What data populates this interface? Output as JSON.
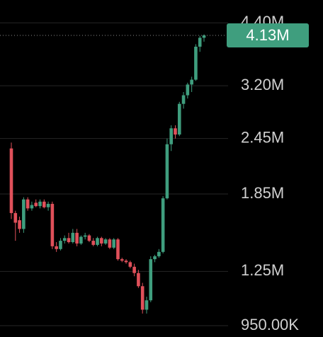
{
  "chart_data": {
    "type": "candlestick",
    "log_scale": true,
    "grid": true,
    "up_color": "#3f9e7e",
    "down_color": "#e0505a",
    "ylim": [
      897000,
      4940000
    ],
    "yticks": [
      {
        "value": 950000,
        "label": "950.00K"
      },
      {
        "value": 1250000,
        "label": "1.25M"
      },
      {
        "value": 1850000,
        "label": "1.85M"
      },
      {
        "value": 2450000,
        "label": "2.45M"
      },
      {
        "value": 3200000,
        "label": "3.20M"
      },
      {
        "value": 4400000,
        "label": "4.40M"
      }
    ],
    "last_value": {
      "value": 4130000,
      "label": "4.13M"
    },
    "open": [
      2330000,
      1680000,
      1620000,
      1550000,
      1800000,
      1720000,
      1770000,
      1740000,
      1780000,
      1730000,
      1760000,
      1420000,
      1400000,
      1460000,
      1480000,
      1450000,
      1520000,
      1440000,
      1490000,
      1500000,
      1460000,
      1430000,
      1480000,
      1440000,
      1470000,
      1410000,
      1470000,
      1330000,
      1320000,
      1310000,
      1280000,
      1240000,
      1160000,
      1030000,
      1080000,
      1330000,
      1350000,
      1380000,
      1810000,
      2380000,
      2580000,
      2500000,
      2920000,
      3050000,
      3220000,
      3300000,
      3900000,
      4080000
    ],
    "high": [
      2400000,
      1700000,
      1650000,
      1820000,
      1820000,
      1780000,
      1800000,
      1800000,
      1800000,
      1780000,
      1780000,
      1450000,
      1480000,
      1500000,
      1520000,
      1550000,
      1550000,
      1500000,
      1520000,
      1510000,
      1480000,
      1490000,
      1490000,
      1480000,
      1480000,
      1480000,
      1480000,
      1340000,
      1330000,
      1320000,
      1300000,
      1260000,
      1180000,
      1100000,
      1350000,
      1360000,
      1400000,
      1830000,
      2450000,
      2620000,
      2620000,
      2950000,
      3100000,
      3250000,
      3350000,
      3950000,
      4120000,
      4150000
    ],
    "low": [
      1630000,
      1460000,
      1520000,
      1520000,
      1700000,
      1700000,
      1730000,
      1720000,
      1720000,
      1700000,
      1400000,
      1380000,
      1390000,
      1440000,
      1440000,
      1440000,
      1420000,
      1430000,
      1470000,
      1450000,
      1420000,
      1420000,
      1420000,
      1430000,
      1400000,
      1400000,
      1320000,
      1310000,
      1300000,
      1270000,
      1220000,
      1150000,
      1010000,
      1010000,
      1070000,
      1310000,
      1340000,
      1370000,
      1800000,
      2300000,
      2450000,
      2480000,
      2850000,
      3000000,
      3100000,
      3280000,
      3800000,
      4000000
    ],
    "close": [
      1680000,
      1600000,
      1550000,
      1800000,
      1720000,
      1750000,
      1740000,
      1780000,
      1730000,
      1760000,
      1420000,
      1400000,
      1460000,
      1480000,
      1450000,
      1520000,
      1440000,
      1490000,
      1500000,
      1460000,
      1430000,
      1480000,
      1440000,
      1470000,
      1410000,
      1470000,
      1330000,
      1320000,
      1310000,
      1280000,
      1240000,
      1160000,
      1030000,
      1080000,
      1330000,
      1350000,
      1380000,
      1810000,
      2380000,
      2580000,
      2500000,
      2920000,
      3050000,
      3220000,
      3300000,
      3900000,
      4080000,
      4130000
    ]
  }
}
